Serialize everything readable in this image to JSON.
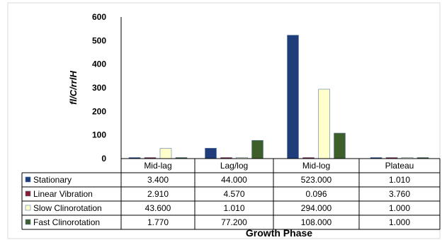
{
  "chart_data": {
    "type": "bar",
    "categories": [
      "Mid-lag",
      "Lag/log",
      "Mid-log",
      "Plateau"
    ],
    "series": [
      {
        "name": "Stationary",
        "values": [
          3.4,
          44.0,
          523.0,
          1.01
        ],
        "labels": [
          "3.400",
          "44.000",
          "523.000",
          "1.010"
        ],
        "color": "#1f3d7a"
      },
      {
        "name": "Linear Vibration",
        "values": [
          2.91,
          4.57,
          0.096,
          3.76
        ],
        "labels": [
          "2.910",
          "4.570",
          "0.096",
          "3.760"
        ],
        "color": "#8b1a2b"
      },
      {
        "name": "Slow Clinorotation",
        "values": [
          43.6,
          1.01,
          294.0,
          1.0
        ],
        "labels": [
          "43.600",
          "1.010",
          "294.000",
          "1.000"
        ],
        "color": "#ffffcc"
      },
      {
        "name": "Fast Clinorotation",
        "values": [
          1.77,
          77.2,
          108.0,
          1.0
        ],
        "labels": [
          "1.770",
          "77.200",
          "108.000",
          "1.000"
        ],
        "color": "#3f5f2a"
      }
    ],
    "ylabel": "fl/C/rrlH",
    "xlabel": "Growth Phase",
    "ylim": [
      0,
      600
    ],
    "yticks": [
      "0",
      "100",
      "200",
      "300",
      "400",
      "500",
      "600"
    ],
    "grid": false,
    "legend": "data-table"
  }
}
